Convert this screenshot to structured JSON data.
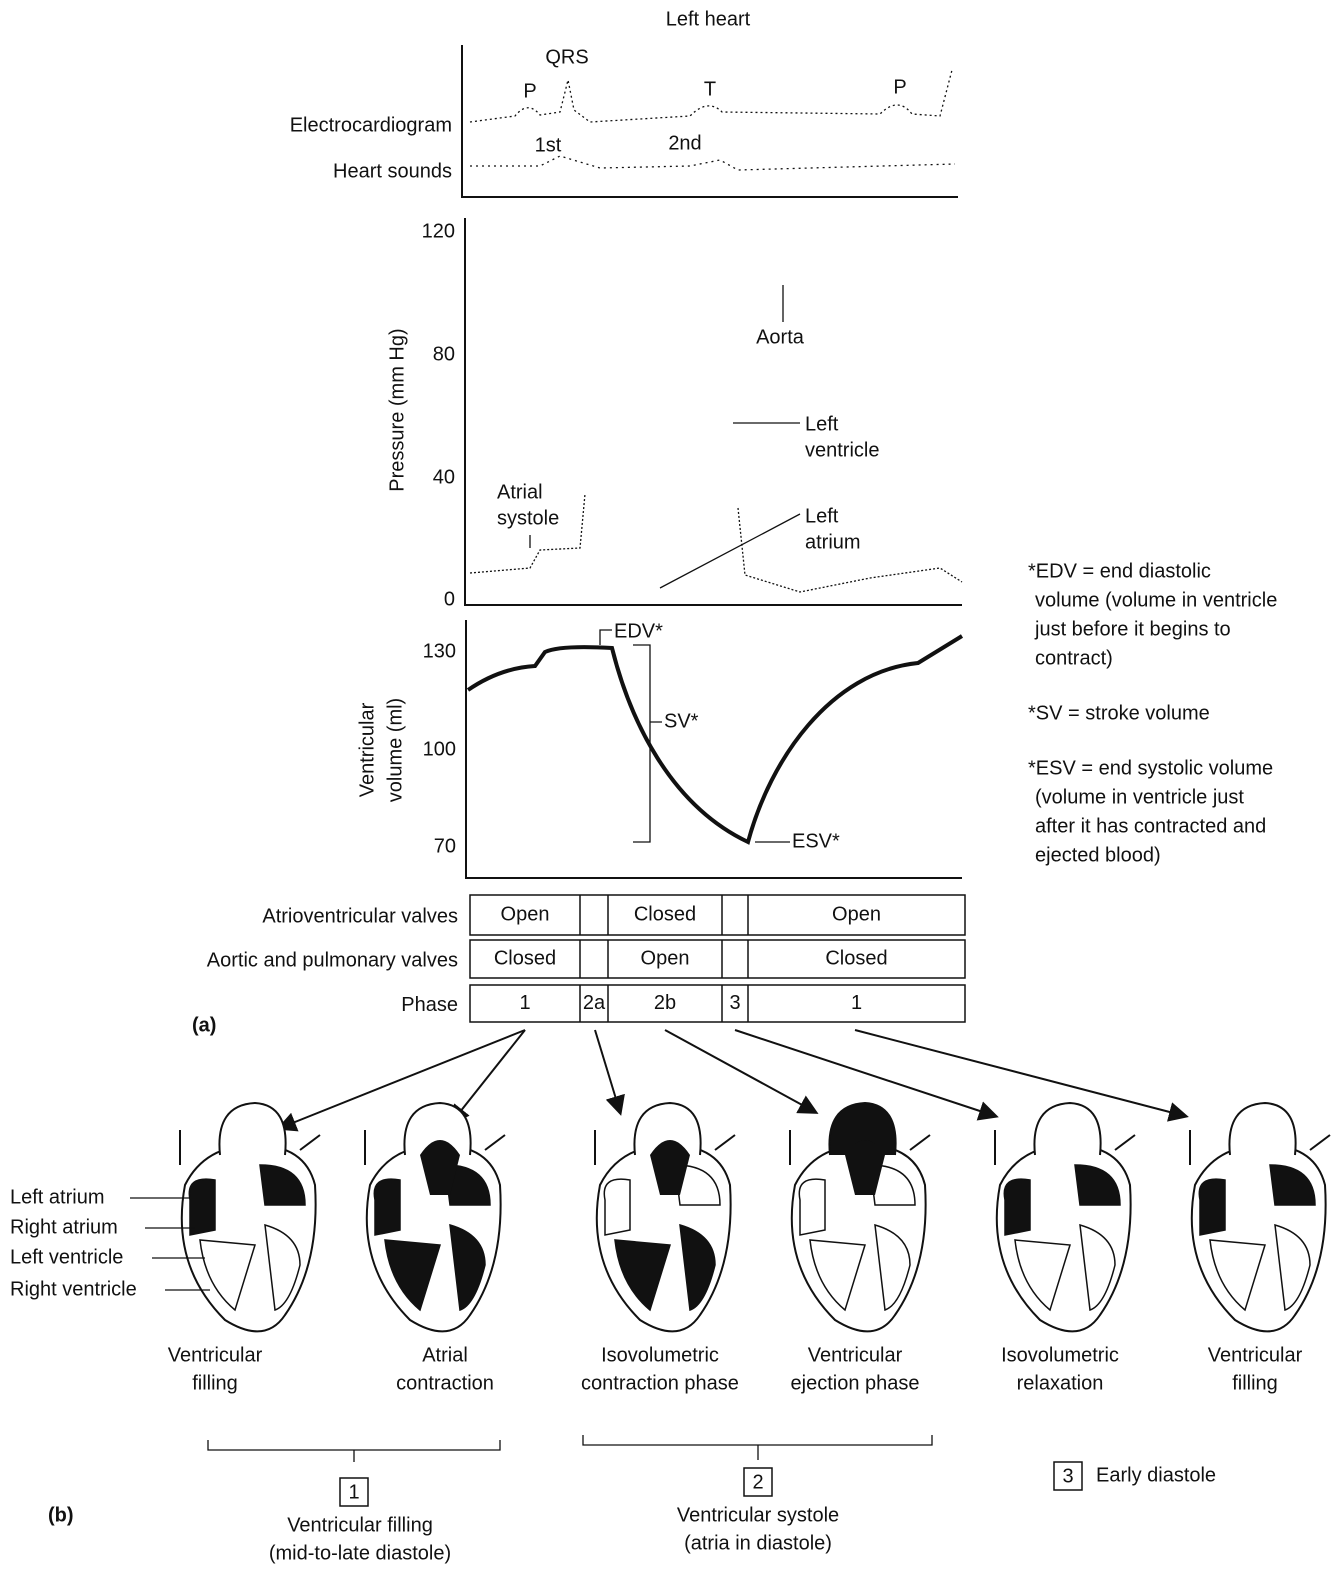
{
  "title": "Left heart",
  "ecg": {
    "label": "Electrocardiogram",
    "waves": [
      "P",
      "QRS",
      "T",
      "P"
    ]
  },
  "heart_sounds": {
    "label": "Heart sounds",
    "sounds": [
      "1st",
      "2nd"
    ]
  },
  "pressure": {
    "axis_label": "Pressure (mm Hg)",
    "ticks": [
      "120",
      "80",
      "40",
      "0"
    ],
    "aorta": "Aorta",
    "left_ventricle": [
      "Left",
      "ventricle"
    ],
    "left_atrium": [
      "Left",
      "atrium"
    ],
    "atrial_systole": [
      "Atrial",
      "systole"
    ]
  },
  "volume": {
    "axis_label": [
      "Ventricular",
      "volume (ml)"
    ],
    "ticks": [
      "130",
      "100",
      "70"
    ],
    "edv": "EDV*",
    "sv": "SV*",
    "esv": "ESV*"
  },
  "notes": [
    [
      "*EDV = end diastolic",
      "volume (volume in ventricle",
      "just before it begins to",
      "contract)"
    ],
    [
      "*SV = stroke volume"
    ],
    [
      "*ESV = end systolic volume",
      "(volume in ventricle just",
      "after it has contracted and",
      "ejected blood)"
    ]
  ],
  "valves": {
    "rows": [
      {
        "label": "Atrioventricular valves",
        "cells": [
          "Open",
          "Closed",
          "Open"
        ]
      },
      {
        "label": "Aortic and pulmonary valves",
        "cells": [
          "Closed",
          "Open",
          "Closed"
        ]
      },
      {
        "label": "Phase",
        "cells": [
          "1",
          "2a",
          "2b",
          "3",
          "1"
        ]
      }
    ]
  },
  "part_labels": [
    "(a)",
    "(b)"
  ],
  "structures": [
    "Left atrium",
    "Right atrium",
    "Left ventricle",
    "Right ventricle"
  ],
  "hearts": [
    [
      "Ventricular",
      "filling"
    ],
    [
      "Atrial",
      "contraction"
    ],
    [
      "Isovolumetric",
      "contraction phase"
    ],
    [
      "Ventricular",
      "ejection phase"
    ],
    [
      "Isovolumetric",
      "relaxation"
    ],
    [
      "Ventricular",
      "filling"
    ]
  ],
  "stages": [
    {
      "number": "1",
      "label": [
        "Ventricular filling",
        "(mid-to-late diastole)"
      ]
    },
    {
      "number": "2",
      "label": [
        "Ventricular systole",
        "(atria in diastole)"
      ]
    },
    {
      "number": "3",
      "label": [
        "Early diastole"
      ]
    }
  ]
}
